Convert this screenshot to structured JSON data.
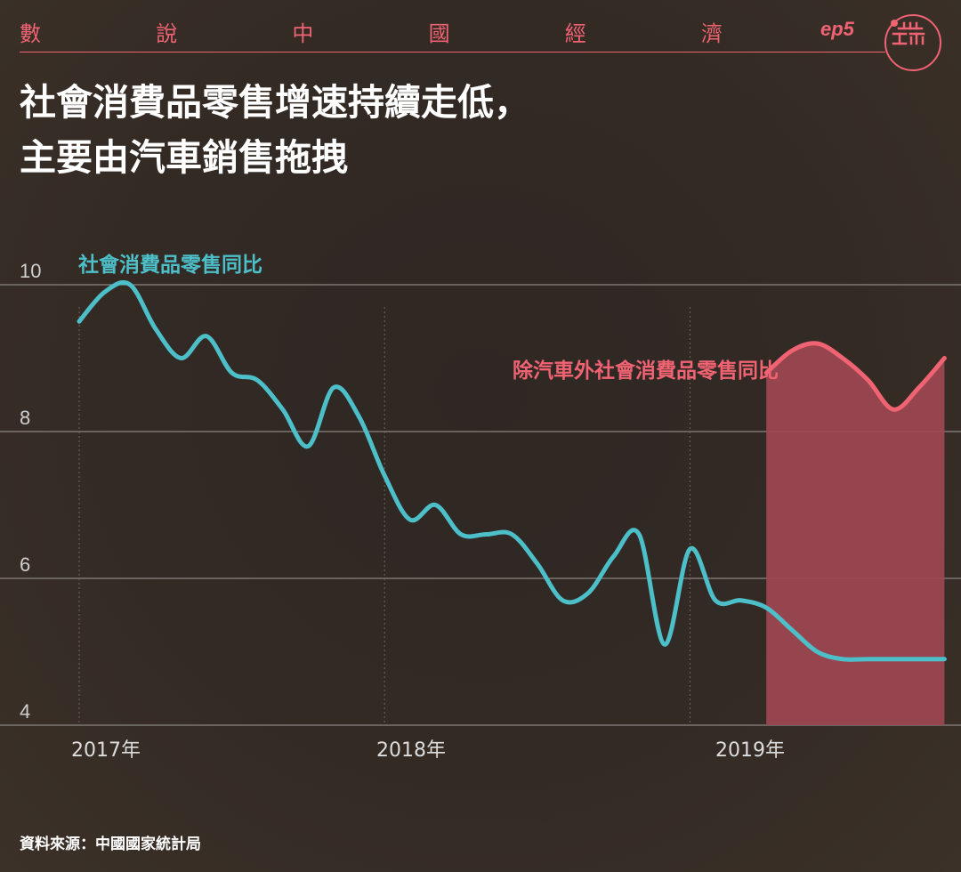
{
  "header": {
    "series_chars": [
      "數",
      "說",
      "中",
      "國",
      "經",
      "濟"
    ],
    "episode": "ep5"
  },
  "headline": {
    "line1": "社會消費品零售增速持續走低，",
    "line2": "主要由汽車銷售拖拽"
  },
  "footer": {
    "source": "資料來源：中國國家統計局"
  },
  "colors": {
    "accent": "#f06373",
    "series_main": "#4dbfc9",
    "series_ex_auto": "#f06373",
    "highlight_fill": "#9e4751"
  },
  "chart_data": {
    "type": "line",
    "y_ticks": [
      "10",
      "8",
      "6",
      "4"
    ],
    "ylim": [
      4,
      10
    ],
    "x_ticks": [
      "2017年",
      "2018年",
      "2019年"
    ],
    "grid": "horizontal",
    "series": [
      {
        "name": "社會消費品零售同比",
        "x": [
          "2017-01",
          "2017-02",
          "2017-03",
          "2017-04",
          "2017-05",
          "2017-06",
          "2017-07",
          "2017-08",
          "2017-09",
          "2017-10",
          "2017-11",
          "2017-12",
          "2018-01",
          "2018-02",
          "2018-03",
          "2018-04",
          "2018-05",
          "2018-06",
          "2018-07",
          "2018-08",
          "2018-09",
          "2018-10",
          "2018-11",
          "2018-12",
          "2019-01",
          "2019-02",
          "2019-03",
          "2019-04",
          "2019-05",
          "2019-06",
          "2019-07",
          "2019-08",
          "2019-09",
          "2019-10",
          "2019-11"
        ],
        "values": [
          9.5,
          9.9,
          10.0,
          9.4,
          9.0,
          9.3,
          8.8,
          8.7,
          8.3,
          7.8,
          8.6,
          8.2,
          7.4,
          6.8,
          7.0,
          6.6,
          6.6,
          6.6,
          6.2,
          5.7,
          5.8,
          6.3,
          6.6,
          5.1,
          6.4,
          5.7,
          5.7,
          5.6,
          5.3,
          5.0,
          4.9,
          4.9,
          4.9,
          4.9,
          4.9
        ]
      },
      {
        "name": "除汽車外社會消費品零售同比",
        "x": [
          "2019-04",
          "2019-05",
          "2019-06",
          "2019-07",
          "2019-08",
          "2019-09",
          "2019-10",
          "2019-11"
        ],
        "values": [
          8.8,
          9.1,
          9.2,
          9.0,
          8.7,
          8.3,
          8.6,
          9.0
        ]
      }
    ]
  }
}
